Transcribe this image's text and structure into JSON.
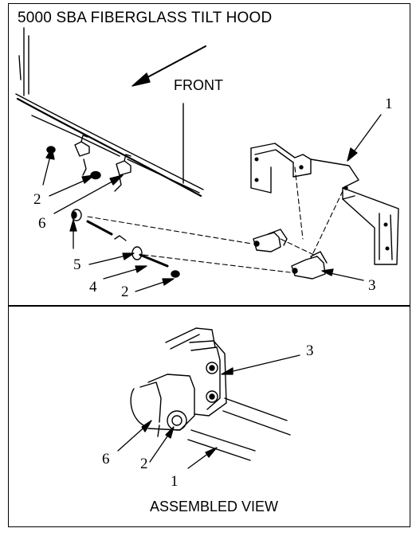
{
  "title": "5000 SBA FIBERGLASS TILT HOOD",
  "front_label": "FRONT",
  "assembled_view_label": "ASSEMBLED VIEW",
  "exploded_callouts": [
    "1",
    "2",
    "6",
    "5",
    "4",
    "2",
    "3"
  ],
  "assembled_callouts": [
    "3",
    "6",
    "2",
    "1"
  ]
}
